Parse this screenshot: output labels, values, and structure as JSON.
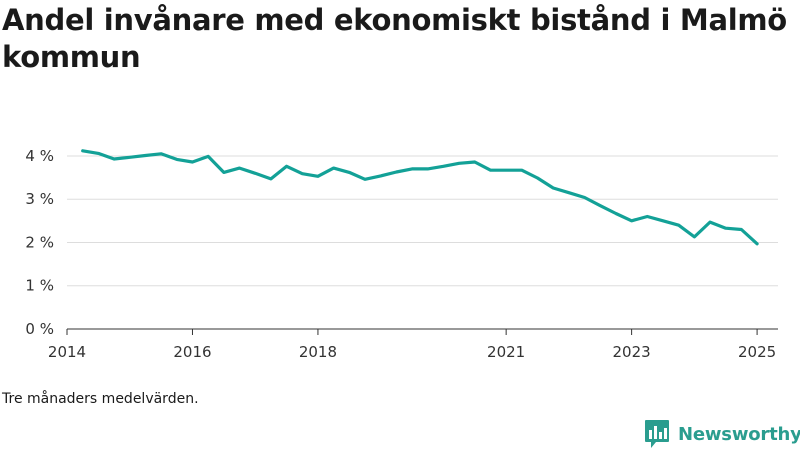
{
  "title": "Andel invånare med ekonomiskt bistånd i Malmö kommun",
  "note": "Tre månaders medelvärden.",
  "brand": {
    "name": "Newsworthy",
    "color": "#2a9d8f",
    "icon": "bar-chart-icon"
  },
  "chart_data": {
    "type": "line",
    "title": "Andel invånare med ekonomiskt bistånd i Malmö kommun",
    "xlabel": "",
    "ylabel": "",
    "ylim": [
      0,
      4.6
    ],
    "xlim": [
      "2014-01-01",
      "2025-05-01"
    ],
    "yticks": [
      0,
      1,
      2,
      3,
      4
    ],
    "ytick_labels": [
      "0 %",
      "1 %",
      "2 %",
      "3 %",
      "4 %"
    ],
    "xticks": [
      "2014-01-01",
      "2016-01-01",
      "2018-01-01",
      "2021-01-01",
      "2023-01-01",
      "2025-01-01"
    ],
    "xtick_labels": [
      "2014",
      "2016",
      "2018",
      "2021",
      "2023",
      "2025"
    ],
    "grid": "horizontal",
    "series": [
      {
        "color": "#13a197",
        "x": [
          "2014-04",
          "2014-07",
          "2014-10",
          "2015-01",
          "2015-04",
          "2015-07",
          "2015-10",
          "2016-01",
          "2016-04",
          "2016-07",
          "2016-10",
          "2017-01",
          "2017-04",
          "2017-07",
          "2017-10",
          "2018-01",
          "2018-04",
          "2018-07",
          "2018-10",
          "2019-01",
          "2019-04",
          "2019-07",
          "2019-10",
          "2020-01",
          "2020-04",
          "2020-07",
          "2020-10",
          "2021-01",
          "2021-04",
          "2021-07",
          "2021-10",
          "2022-01",
          "2022-04",
          "2022-07",
          "2022-10",
          "2023-01",
          "2023-04",
          "2023-07",
          "2023-10",
          "2024-01",
          "2024-04",
          "2024-07",
          "2024-10",
          "2025-01"
        ],
        "y": [
          4.12,
          4.06,
          3.93,
          3.97,
          4.01,
          4.05,
          3.92,
          3.86,
          3.99,
          3.62,
          3.72,
          3.6,
          3.47,
          3.76,
          3.59,
          3.53,
          3.72,
          3.62,
          3.46,
          3.54,
          3.63,
          3.7,
          3.7,
          3.76,
          3.83,
          3.86,
          3.67,
          3.67,
          3.67,
          3.49,
          3.26,
          3.15,
          3.04,
          2.85,
          2.67,
          2.5,
          2.6,
          2.5,
          2.4,
          2.13,
          2.47,
          2.33,
          2.3,
          1.97
        ]
      }
    ]
  }
}
